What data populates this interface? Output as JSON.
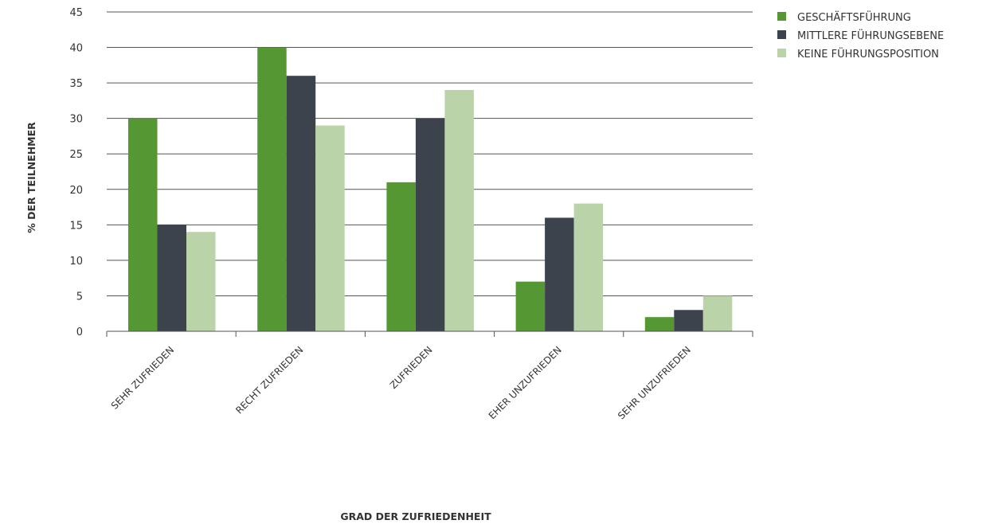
{
  "chart_data": {
    "type": "bar",
    "title": "",
    "xlabel": "GRAD DER ZUFRIEDENHEIT",
    "ylabel": "% DER TEILNEHMER",
    "ylim": [
      0,
      45
    ],
    "yticks": [
      "0",
      "5",
      "10",
      "15",
      "20",
      "25",
      "30",
      "35",
      "40",
      "45"
    ],
    "grid": true,
    "legend_position": "top-right",
    "categories": [
      "SEHR ZUFRIEDEN",
      "RECHT ZUFRIEDEN",
      "ZUFRIEDEN",
      "EHER UNZUFRIEDEN",
      "SEHR UNZUFRIEDEN"
    ],
    "series": [
      {
        "name": "GESCHÄFTSFÜHRUNG",
        "color": "#559733",
        "values": [
          30,
          40,
          21,
          7,
          2
        ]
      },
      {
        "name": "MITTLERE FÜHRUNGSEBENE",
        "color": "#3c434d",
        "values": [
          15,
          36,
          30,
          16,
          3
        ]
      },
      {
        "name": "KEINE FÜHRUNGSPOSITION",
        "color": "#bad3a8",
        "values": [
          14,
          29,
          34,
          18,
          5
        ]
      }
    ]
  }
}
